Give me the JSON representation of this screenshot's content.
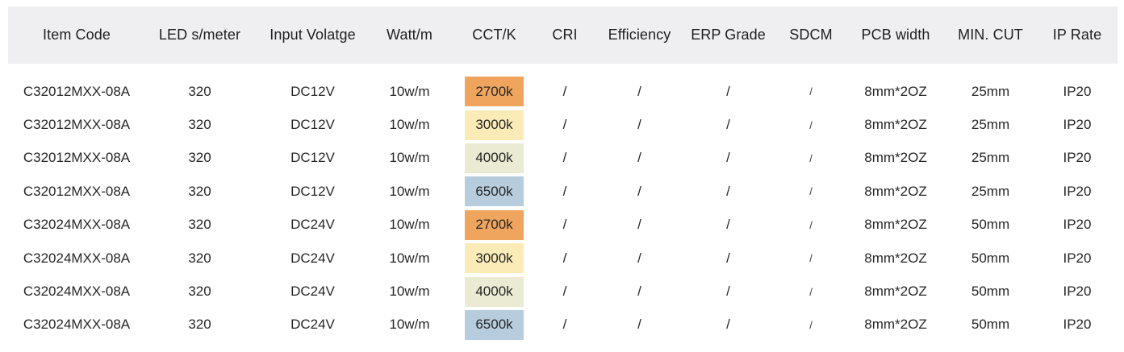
{
  "colors": {
    "background": "#FFFFFF",
    "header_bg": "#EFEFF1",
    "text": "#262626"
  },
  "table": {
    "columns": [
      {
        "key": "item_code",
        "label": "Item Code"
      },
      {
        "key": "leds_per_meter",
        "label": "LED s/meter"
      },
      {
        "key": "input_voltage",
        "label": "Input Volatge"
      },
      {
        "key": "watt_per_m",
        "label": "Watt/m"
      },
      {
        "key": "cct_k",
        "label": "CCT/K"
      },
      {
        "key": "cri",
        "label": "CRI"
      },
      {
        "key": "efficiency",
        "label": "Efficiency"
      },
      {
        "key": "erp_grade",
        "label": "ERP Grade"
      },
      {
        "key": "sdcm",
        "label": "SDCM"
      },
      {
        "key": "pcb_width",
        "label": "PCB width"
      },
      {
        "key": "min_cut",
        "label": "MIN. CUT"
      },
      {
        "key": "ip_rate",
        "label": "IP Rate"
      }
    ],
    "cct_colors": {
      "2700k": "#F0A55E",
      "3000k": "#FAEBB7",
      "4000k": "#EBEAD3",
      "6500k": "#B7CDDE"
    },
    "rows": [
      {
        "item_code": "C32012MXX-08A",
        "leds_per_meter": "320",
        "input_voltage": "DC12V",
        "watt_per_m": "10w/m",
        "cct_k": "2700k",
        "cri": "/",
        "efficiency": "/",
        "erp_grade": "/",
        "sdcm": "/",
        "pcb_width": "8mm*2OZ",
        "min_cut": "25mm",
        "ip_rate": "IP20"
      },
      {
        "item_code": "C32012MXX-08A",
        "leds_per_meter": "320",
        "input_voltage": "DC12V",
        "watt_per_m": "10w/m",
        "cct_k": "3000k",
        "cri": "/",
        "efficiency": "/",
        "erp_grade": "/",
        "sdcm": "/",
        "pcb_width": "8mm*2OZ",
        "min_cut": "25mm",
        "ip_rate": "IP20"
      },
      {
        "item_code": "C32012MXX-08A",
        "leds_per_meter": "320",
        "input_voltage": "DC12V",
        "watt_per_m": "10w/m",
        "cct_k": "4000k",
        "cri": "/",
        "efficiency": "/",
        "erp_grade": "/",
        "sdcm": "/",
        "pcb_width": "8mm*2OZ",
        "min_cut": "25mm",
        "ip_rate": "IP20"
      },
      {
        "item_code": "C32012MXX-08A",
        "leds_per_meter": "320",
        "input_voltage": "DC12V",
        "watt_per_m": "10w/m",
        "cct_k": "6500k",
        "cri": "/",
        "efficiency": "/",
        "erp_grade": "/",
        "sdcm": "/",
        "pcb_width": "8mm*2OZ",
        "min_cut": "25mm",
        "ip_rate": "IP20"
      },
      {
        "item_code": "C32024MXX-08A",
        "leds_per_meter": "320",
        "input_voltage": "DC24V",
        "watt_per_m": "10w/m",
        "cct_k": "2700k",
        "cri": "/",
        "efficiency": "/",
        "erp_grade": "/",
        "sdcm": "/",
        "pcb_width": "8mm*2OZ",
        "min_cut": "50mm",
        "ip_rate": "IP20"
      },
      {
        "item_code": "C32024MXX-08A",
        "leds_per_meter": "320",
        "input_voltage": "DC24V",
        "watt_per_m": "10w/m",
        "cct_k": "3000k",
        "cri": "/",
        "efficiency": "/",
        "erp_grade": "/",
        "sdcm": "/",
        "pcb_width": "8mm*2OZ",
        "min_cut": "50mm",
        "ip_rate": "IP20"
      },
      {
        "item_code": "C32024MXX-08A",
        "leds_per_meter": "320",
        "input_voltage": "DC24V",
        "watt_per_m": "10w/m",
        "cct_k": "4000k",
        "cri": "/",
        "efficiency": "/",
        "erp_grade": "/",
        "sdcm": "/",
        "pcb_width": "8mm*2OZ",
        "min_cut": "50mm",
        "ip_rate": "IP20"
      },
      {
        "item_code": "C32024MXX-08A",
        "leds_per_meter": "320",
        "input_voltage": "DC24V",
        "watt_per_m": "10w/m",
        "cct_k": "6500k",
        "cri": "/",
        "efficiency": "/",
        "erp_grade": "/",
        "sdcm": "/",
        "pcb_width": "8mm*2OZ",
        "min_cut": "50mm",
        "ip_rate": "IP20"
      }
    ]
  }
}
